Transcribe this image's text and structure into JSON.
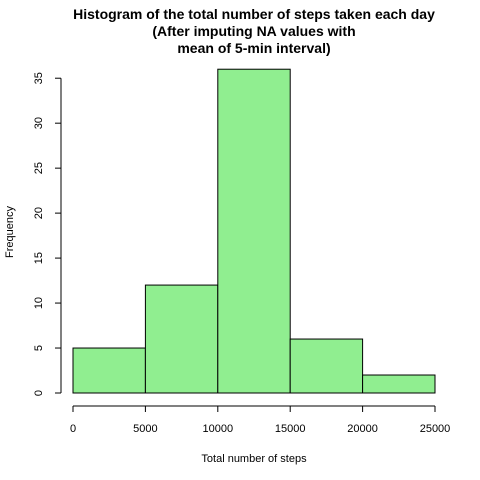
{
  "chart_data": {
    "type": "bar",
    "title_lines": [
      "Histogram of the total number of steps taken each day",
      "(After imputing NA values with",
      "mean of 5-min interval)"
    ],
    "xlabel": "Total number of steps",
    "ylabel": "Frequency",
    "bins": [
      {
        "start": 0,
        "end": 5000,
        "value": 5
      },
      {
        "start": 5000,
        "end": 10000,
        "value": 12
      },
      {
        "start": 10000,
        "end": 15000,
        "value": 36
      },
      {
        "start": 15000,
        "end": 20000,
        "value": 6
      },
      {
        "start": 20000,
        "end": 25000,
        "value": 2
      }
    ],
    "xlim": [
      0,
      25000
    ],
    "ylim": [
      0,
      36
    ],
    "x_ticks": [
      0,
      5000,
      10000,
      15000,
      20000,
      25000
    ],
    "x_tick_labels": [
      "0",
      "5000",
      "10000",
      "15000",
      "20000",
      "25000"
    ],
    "y_ticks": [
      0,
      5,
      10,
      15,
      20,
      25,
      30,
      35
    ],
    "y_tick_labels": [
      "0",
      "5",
      "10",
      "15",
      "20",
      "25",
      "30",
      "35"
    ],
    "bar_color": "#90EE90",
    "grid": false,
    "legend": "none"
  }
}
